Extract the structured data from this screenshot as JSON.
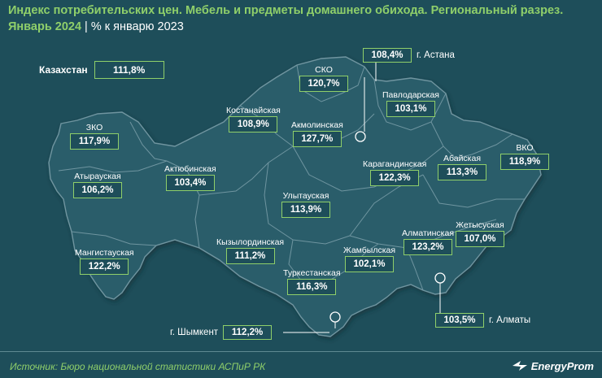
{
  "header": {
    "title": "Индекс потребительских цен. Мебель и предметы домашнего обихода. Региональный разрез.",
    "date": "Январь 2024",
    "separator": "|",
    "unit": "% к январю 2023"
  },
  "country": {
    "name": "Казахстан",
    "value": "111,8%"
  },
  "regions": {
    "sko": {
      "name": "СКО",
      "value": "120,7%"
    },
    "pavlodar": {
      "name": "Павлодарская",
      "value": "103,1%"
    },
    "kostanay": {
      "name": "Костанайская",
      "value": "108,9%"
    },
    "akmola": {
      "name": "Акмолинская",
      "value": "127,7%"
    },
    "zko": {
      "name": "ЗКО",
      "value": "117,9%"
    },
    "aktobe": {
      "name": "Актюбинская",
      "value": "103,4%"
    },
    "atyrau": {
      "name": "Атырауская",
      "value": "106,2%"
    },
    "karaganda": {
      "name": "Карагандинская",
      "value": "122,3%"
    },
    "abay": {
      "name": "Абайская",
      "value": "113,3%"
    },
    "vko": {
      "name": "ВКО",
      "value": "118,9%"
    },
    "ulytau": {
      "name": "Улытауская",
      "value": "113,9%"
    },
    "kyzylorda": {
      "name": "Кызылординская",
      "value": "111,2%"
    },
    "mangystau": {
      "name": "Мангистауская",
      "value": "122,2%"
    },
    "almaty_reg": {
      "name": "Алматинская",
      "value": "123,2%"
    },
    "zhetysu": {
      "name": "Жетысуская",
      "value": "107,0%"
    },
    "zhambyl": {
      "name": "Жамбылская",
      "value": "102,1%"
    },
    "turkestan": {
      "name": "Туркестанская",
      "value": "116,3%"
    }
  },
  "cities": {
    "astana": {
      "name": "г. Астана",
      "value": "108,4%"
    },
    "almaty": {
      "name": "г. Алматы",
      "value": "103,5%"
    },
    "shymkent": {
      "name": "г. Шымкент",
      "value": "112,2%"
    }
  },
  "footer": {
    "source": "Источник: Бюро национальной статистики АСПиР РК",
    "brand": "EnergyProm"
  },
  "colors": {
    "background": "#1e4e5a",
    "map_fill": "#2c5d6a",
    "border": "#6f95a0",
    "accent": "#8fcf6a",
    "text": "#ffffff"
  }
}
